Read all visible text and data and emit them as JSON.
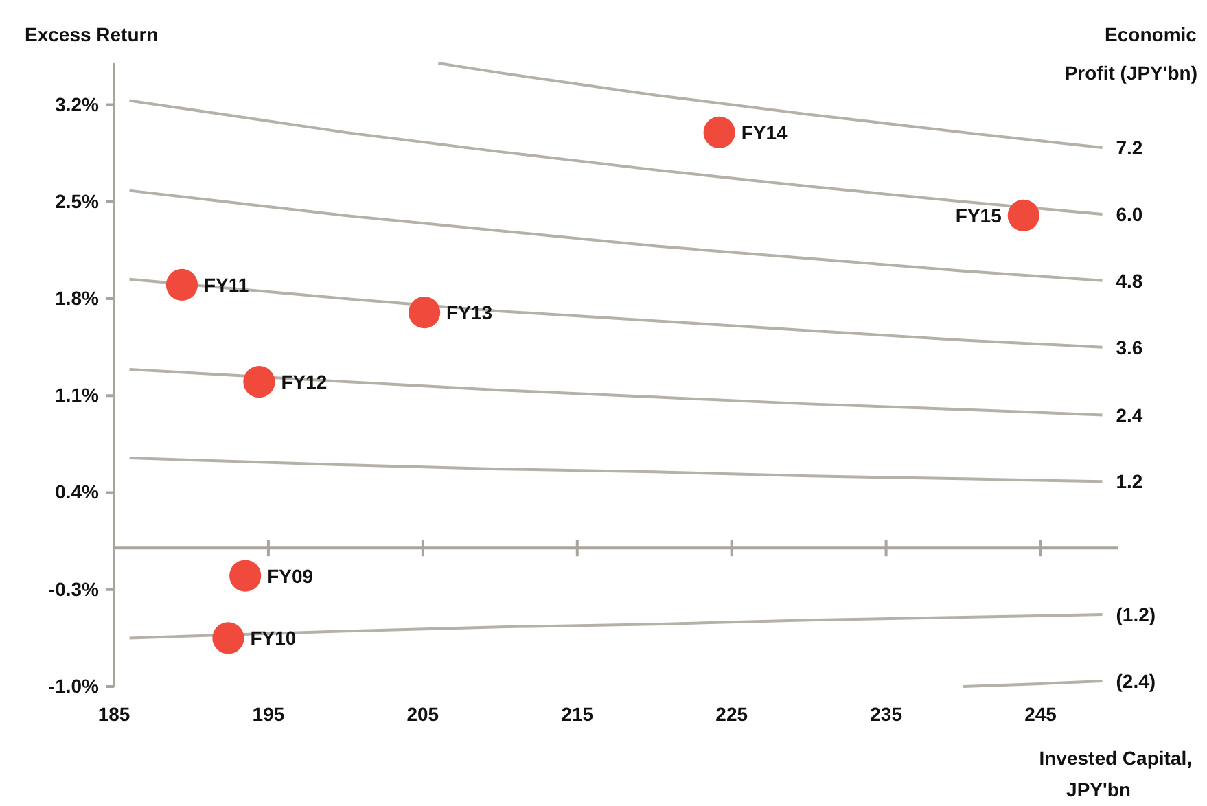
{
  "chart_data": {
    "type": "scatter",
    "ylabel": "Excess Return",
    "xlabel": "Invested Capital, JPY'bn",
    "legend_title": "Economic Profit (JPY'bn)",
    "xlim": [
      185,
      250
    ],
    "xticks": [
      185,
      195,
      205,
      215,
      225,
      235,
      245
    ],
    "ylim": [
      -1.0,
      3.5
    ],
    "yticks": [
      {
        "value": 3.2,
        "label": "3.2%"
      },
      {
        "value": 2.5,
        "label": "2.5%"
      },
      {
        "value": 1.8,
        "label": "1.8%"
      },
      {
        "value": 1.1,
        "label": "1.1%"
      },
      {
        "value": 0.4,
        "label": "0.4%"
      },
      {
        "value": -0.3,
        "label": "-0.3%"
      },
      {
        "value": -1.0,
        "label": "-1.0%"
      }
    ],
    "series": [
      {
        "type": "line",
        "name": "7.2",
        "color": "#b5b0a8",
        "x": [
          206,
          210,
          220,
          230,
          240,
          249
        ],
        "values": [
          3.5,
          3.43,
          3.27,
          3.13,
          3.0,
          2.89
        ]
      },
      {
        "type": "line",
        "name": "6.0",
        "color": "#b5b0a8",
        "x": [
          186,
          200,
          210,
          220,
          230,
          240,
          249
        ],
        "values": [
          3.23,
          3.0,
          2.86,
          2.73,
          2.61,
          2.5,
          2.41
        ]
      },
      {
        "type": "line",
        "name": "4.8",
        "color": "#b5b0a8",
        "x": [
          186,
          200,
          210,
          220,
          230,
          240,
          249
        ],
        "values": [
          2.58,
          2.4,
          2.29,
          2.18,
          2.09,
          2.0,
          1.93
        ]
      },
      {
        "type": "line",
        "name": "3.6",
        "color": "#b5b0a8",
        "x": [
          186,
          200,
          210,
          220,
          230,
          240,
          249
        ],
        "values": [
          1.94,
          1.8,
          1.71,
          1.64,
          1.57,
          1.5,
          1.45
        ]
      },
      {
        "type": "line",
        "name": "2.4",
        "color": "#b5b0a8",
        "x": [
          186,
          200,
          210,
          220,
          230,
          240,
          249
        ],
        "values": [
          1.29,
          1.2,
          1.14,
          1.09,
          1.04,
          1.0,
          0.96
        ]
      },
      {
        "type": "line",
        "name": "1.2",
        "color": "#b5b0a8",
        "x": [
          186,
          200,
          210,
          220,
          230,
          240,
          249
        ],
        "values": [
          0.65,
          0.6,
          0.57,
          0.55,
          0.52,
          0.5,
          0.48
        ]
      },
      {
        "type": "line",
        "name": "(1.2)",
        "color": "#b5b0a8",
        "x": [
          186,
          200,
          210,
          220,
          230,
          240,
          249
        ],
        "values": [
          -0.65,
          -0.6,
          -0.57,
          -0.55,
          -0.52,
          -0.5,
          -0.48
        ]
      },
      {
        "type": "line",
        "name": "(2.4)",
        "color": "#b5b0a8",
        "x": [
          240,
          245,
          249
        ],
        "values": [
          -1.0,
          -0.98,
          -0.96
        ]
      },
      {
        "marker": "circle",
        "color": "#f04a3c",
        "x": [
          193.5,
          192.4,
          189.4,
          194.4,
          205.1,
          224.2,
          243.9
        ],
        "values": [
          -0.2,
          -0.65,
          1.9,
          1.2,
          1.7,
          3.0,
          2.4
        ]
      }
    ],
    "annotations": [
      {
        "text": "FY09",
        "x": 193.5,
        "y": -0.2
      },
      {
        "text": "FY10",
        "x": 192.4,
        "y": -0.65
      },
      {
        "text": "FY11",
        "x": 189.4,
        "y": 1.9
      },
      {
        "text": "FY12",
        "x": 194.4,
        "y": 1.2
      },
      {
        "text": "FY13",
        "x": 205.1,
        "y": 1.7
      },
      {
        "text": "FY14",
        "x": 224.2,
        "y": 3.0
      },
      {
        "text": "FY15",
        "x": 243.9,
        "y": 2.4
      }
    ]
  }
}
